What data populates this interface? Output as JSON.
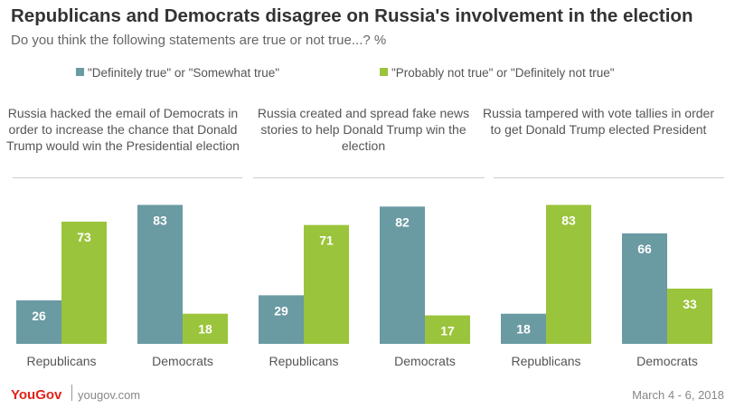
{
  "title": "Republicans and Democrats disagree on Russia's involvement in the election",
  "subtitle": "Do you think the following statements are true or not true...? %",
  "colors": {
    "true": "#6a9aa2",
    "not_true": "#9ac43b",
    "label_dark": "#4b4b4b",
    "label_light": "#ffffff"
  },
  "chart_data": {
    "type": "bar",
    "legend": [
      {
        "name": "\"Definitely true\" or \"Somewhat true\"",
        "color": "#6a9aa2"
      },
      {
        "name": "\"Probably not true\" or \"Definitely not true\"",
        "color": "#9ac43b"
      }
    ],
    "ylim": [
      0,
      100
    ],
    "panels": [
      {
        "title": "Russia hacked the email of Democrats in order to increase the chance that Donald Trump would win the Presidential election",
        "categories": [
          "Republicans",
          "Democrats"
        ],
        "series": [
          {
            "name": "\"Definitely true\" or \"Somewhat true\"",
            "values": [
              26,
              83
            ]
          },
          {
            "name": "\"Probably not true\" or \"Definitely not true\"",
            "values": [
              73,
              18
            ]
          }
        ]
      },
      {
        "title": "Russia created and spread fake news stories to help Donald Trump win the election",
        "categories": [
          "Republicans",
          "Democrats"
        ],
        "series": [
          {
            "name": "\"Definitely true\" or \"Somewhat true\"",
            "values": [
              29,
              82
            ]
          },
          {
            "name": "\"Probably not true\" or \"Definitely not true\"",
            "values": [
              71,
              17
            ]
          }
        ]
      },
      {
        "title": "Russia tampered with vote tallies in order to get Donald Trump elected President",
        "categories": [
          "Republicans",
          "Democrats"
        ],
        "series": [
          {
            "name": "\"Definitely true\" or \"Somewhat true\"",
            "values": [
              18,
              66
            ]
          },
          {
            "name": "\"Probably not true\" or \"Definitely not true\"",
            "values": [
              83,
              33
            ]
          }
        ]
      }
    ]
  },
  "footer": {
    "logo": "YouGov",
    "site": "yougov.com",
    "date": "March 4 - 6, 2018"
  }
}
